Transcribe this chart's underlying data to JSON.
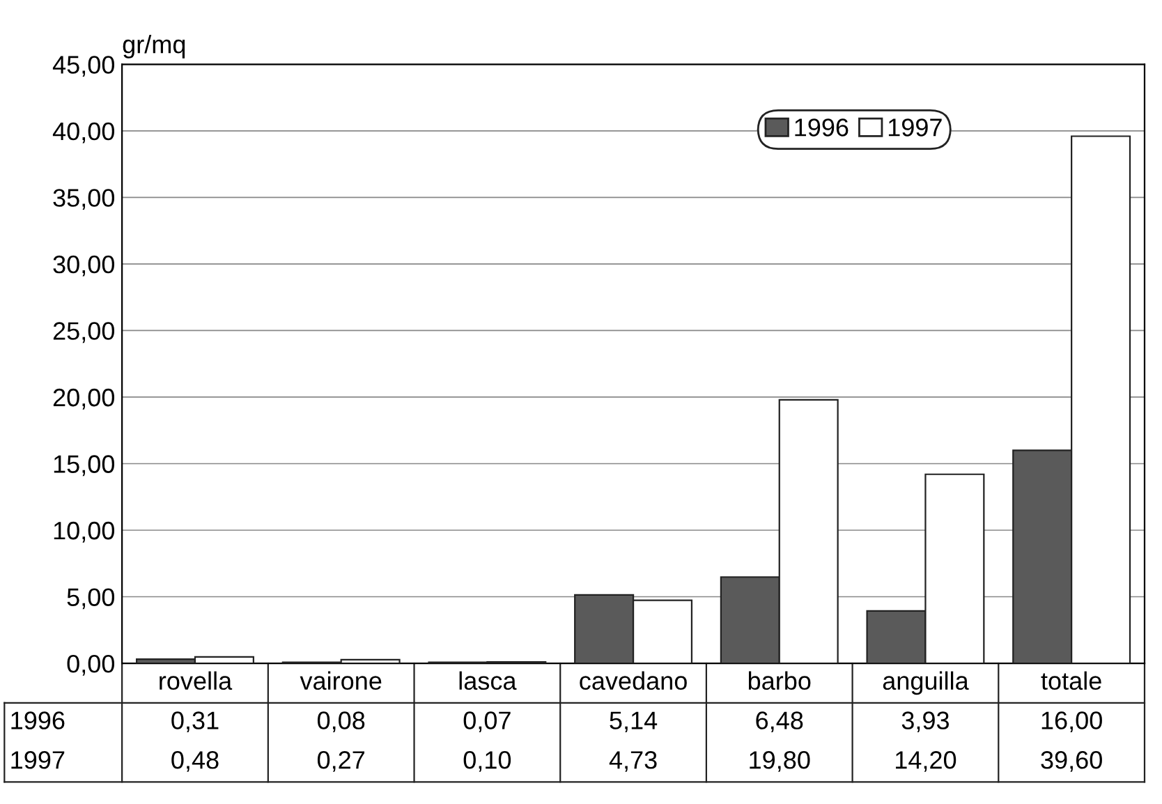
{
  "chart_data": {
    "type": "bar",
    "ylabel": "gr/mq",
    "categories": [
      "rovella",
      "vairone",
      "lasca",
      "cavedano",
      "barbo",
      "anguilla",
      "totale"
    ],
    "series": [
      {
        "name": "1996",
        "color": "#5a5a5a",
        "values": [
          0.31,
          0.08,
          0.07,
          5.14,
          6.48,
          3.93,
          16.0
        ],
        "value_labels": [
          "0,31",
          "0,08",
          "0,07",
          "5,14",
          "6,48",
          "3,93",
          "16,00"
        ]
      },
      {
        "name": "1997",
        "color": "#ffffff",
        "values": [
          0.48,
          0.27,
          0.1,
          4.73,
          19.8,
          14.2,
          39.6
        ],
        "value_labels": [
          "0,48",
          "0,27",
          "0,10",
          "4,73",
          "19,80",
          "14,20",
          "39,60"
        ]
      }
    ],
    "ylim": [
      0,
      45
    ],
    "yticks": [
      {
        "value": 0,
        "label": "0,00"
      },
      {
        "value": 5,
        "label": "5,00"
      },
      {
        "value": 10,
        "label": "10,00"
      },
      {
        "value": 15,
        "label": "15,00"
      },
      {
        "value": 20,
        "label": "20,00"
      },
      {
        "value": 25,
        "label": "25,00"
      },
      {
        "value": 30,
        "label": "30,00"
      },
      {
        "value": 35,
        "label": "35,00"
      },
      {
        "value": 40,
        "label": "40,00"
      },
      {
        "value": 45,
        "label": "45,00"
      }
    ],
    "grid": "y",
    "legend": "top right"
  }
}
